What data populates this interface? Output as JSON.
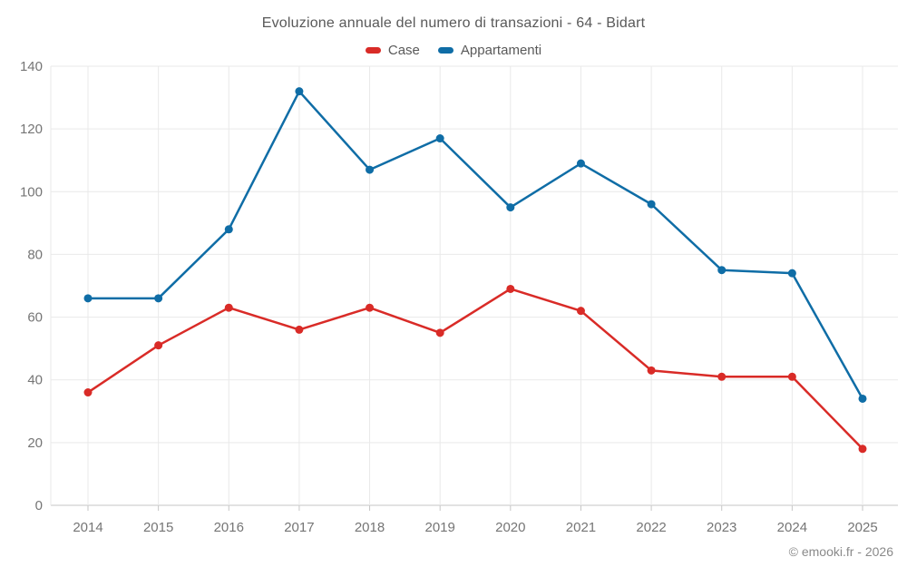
{
  "title": "Evoluzione annuale del numero di transazioni - 64 - Bidart",
  "footer": "© emooki.fr - 2026",
  "legend": [
    {
      "label": "Case",
      "color": "#d92b27"
    },
    {
      "label": "Appartamenti",
      "color": "#0f6da6"
    }
  ],
  "colors": {
    "case": "#d92b27",
    "appartamenti": "#0f6da6",
    "gridline": "#e9e9e9",
    "axis_line": "#c6c6c6",
    "tick_label": "#757575",
    "title_text": "#595959",
    "footer_text": "#8a8a8a"
  },
  "chart_data": {
    "type": "line",
    "title": "Evoluzione annuale del numero di transazioni - 64 - Bidart",
    "categories": [
      "2014",
      "2015",
      "2016",
      "2017",
      "2018",
      "2019",
      "2020",
      "2021",
      "2022",
      "2023",
      "2024",
      "2025"
    ],
    "series": [
      {
        "name": "Case",
        "color": "#d92b27",
        "values": [
          36,
          51,
          63,
          56,
          63,
          55,
          69,
          62,
          43,
          41,
          41,
          18
        ]
      },
      {
        "name": "Appartamenti",
        "color": "#0f6da6",
        "values": [
          66,
          66,
          88,
          132,
          107,
          117,
          95,
          109,
          96,
          75,
          74,
          34
        ]
      }
    ],
    "xlabel": "",
    "ylabel": "",
    "ylim": [
      0,
      140
    ],
    "y_ticks": [
      0,
      20,
      40,
      60,
      80,
      100,
      120,
      140
    ],
    "grid": true,
    "legend_position": "top",
    "marker": "circle"
  }
}
